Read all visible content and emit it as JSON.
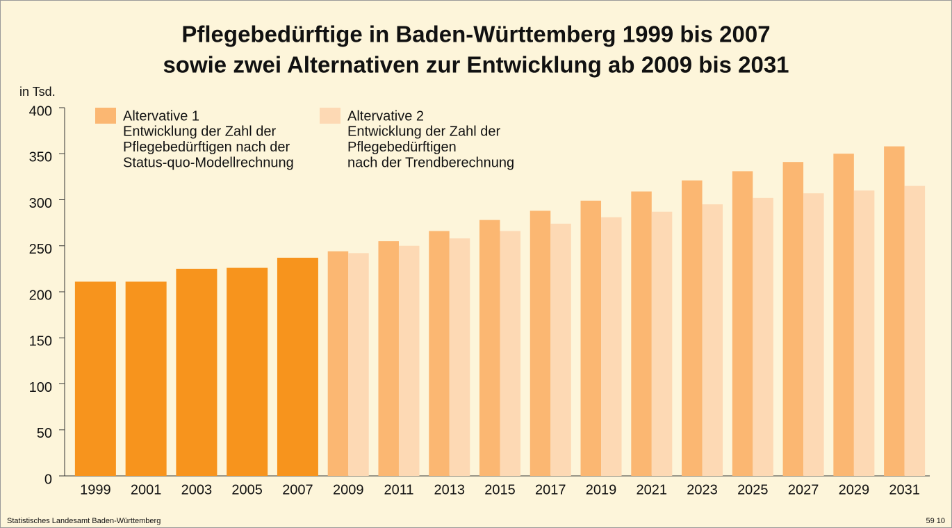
{
  "chart_data": {
    "type": "bar",
    "title": [
      "Pflegebedürftige in Baden-Württemberg 1999 bis 2007",
      "sowie zwei Alternativen zur Entwicklung ab 2009 bis 2031"
    ],
    "y_unit_label": "in Tsd.",
    "source": "Statistisches Landesamt Baden-Württemberg",
    "code": "59 10",
    "categories": [
      "1999",
      "2001",
      "2003",
      "2005",
      "2007",
      "2009",
      "2011",
      "2013",
      "2015",
      "2017",
      "2019",
      "2021",
      "2023",
      "2025",
      "2027",
      "2029",
      "2031"
    ],
    "series": [
      {
        "name": "Altervative 1",
        "description": [
          "Entwicklung der Zahl der",
          "Pflegebedürftigen nach der",
          "Status-quo-Modellrechnung"
        ],
        "color": "#fbb772",
        "colors": [
          "#f7941d",
          "#f7941d",
          "#f7941d",
          "#f7941d",
          "#f7941d",
          "#fbb772",
          "#fbb772",
          "#fbb772",
          "#fbb772",
          "#fbb772",
          "#fbb772",
          "#fbb772",
          "#fbb772",
          "#fbb772",
          "#fbb772",
          "#fbb772",
          "#fbb772"
        ],
        "values": [
          211,
          211,
          225,
          226,
          237,
          244,
          255,
          266,
          278,
          288,
          299,
          309,
          321,
          331,
          341,
          350,
          358
        ]
      },
      {
        "name": "Altervative 2",
        "description": [
          "Entwicklung der Zahl der",
          "Pflegebedürftigen",
          "nach der Trendberechnung"
        ],
        "color": "#fdd9b4",
        "values": [
          null,
          null,
          null,
          null,
          null,
          242,
          250,
          258,
          266,
          274,
          281,
          287,
          295,
          302,
          307,
          310,
          315
        ]
      }
    ],
    "ylim": [
      0,
      400
    ],
    "yticks": [
      0,
      50,
      100,
      150,
      200,
      250,
      300,
      350,
      400
    ],
    "grid": false
  }
}
